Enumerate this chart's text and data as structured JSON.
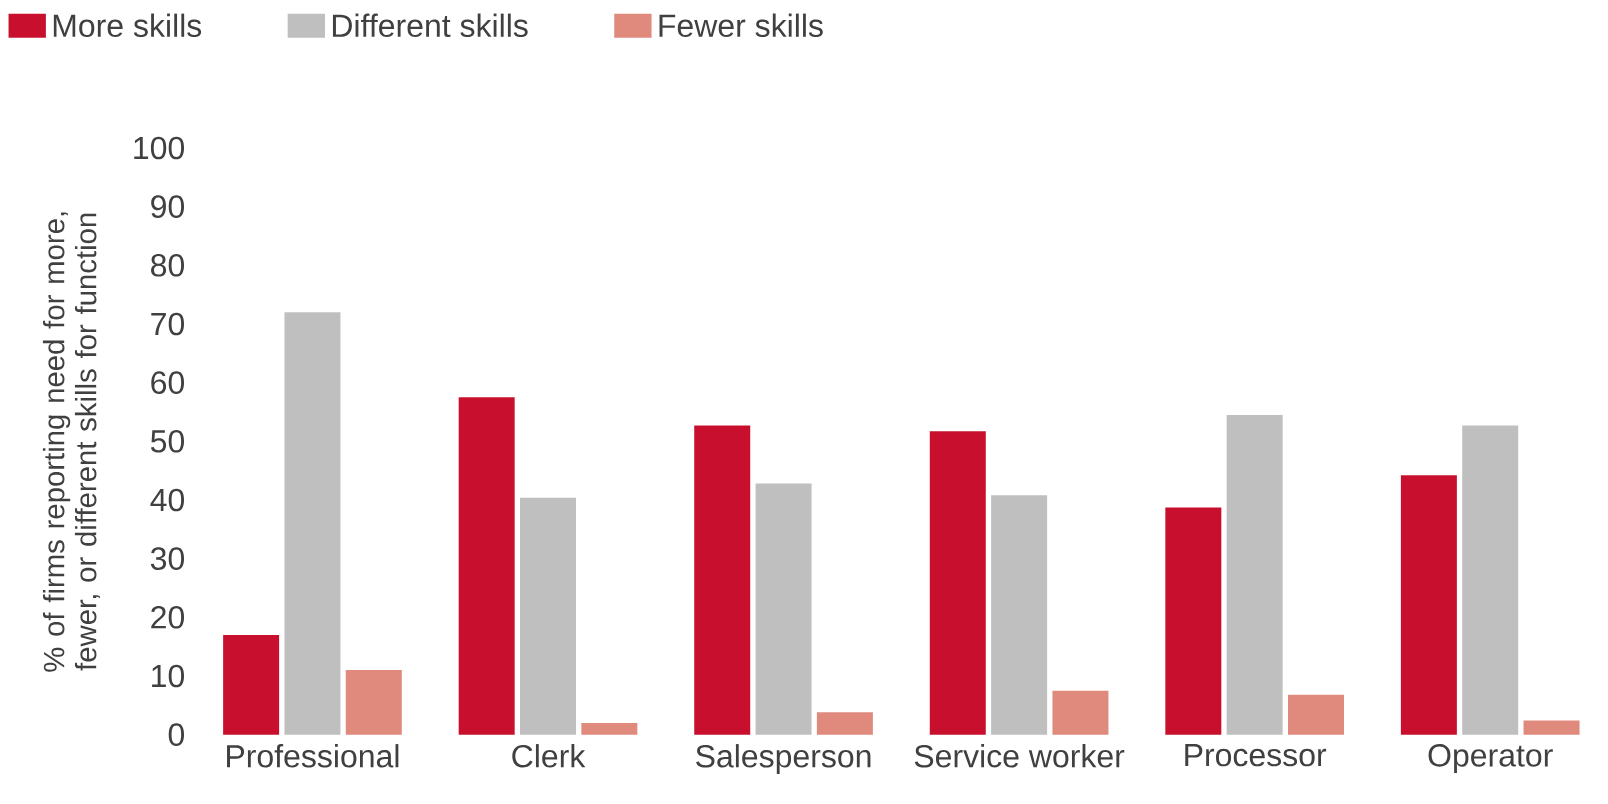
{
  "chart_data": {
    "type": "bar",
    "ylabel": "% of firms reporting need for more, fewer, or different skills for function",
    "categories": [
      "Professional",
      "Clerk",
      "Salesperson",
      "Service worker",
      "Processor",
      "Operator"
    ],
    "series": [
      {
        "name": "More skills",
        "color": "#c8102e",
        "values": [
          17,
          57.5,
          52.7,
          51.7,
          38.7,
          44.2
        ]
      },
      {
        "name": "Different skills",
        "color": "#bfbfbf",
        "values": [
          72,
          40.4,
          42.8,
          40.8,
          54.5,
          52.7
        ]
      },
      {
        "name": "Fewer skills",
        "color": "#e08a7e",
        "values": [
          11,
          2,
          3.8,
          7.5,
          6.8,
          2.4
        ]
      }
    ],
    "ylim": [
      0,
      100
    ],
    "yticks": [
      0,
      10,
      20,
      30,
      40,
      50,
      60,
      70,
      80,
      90,
      100
    ],
    "grid": false,
    "legend": "top left"
  }
}
